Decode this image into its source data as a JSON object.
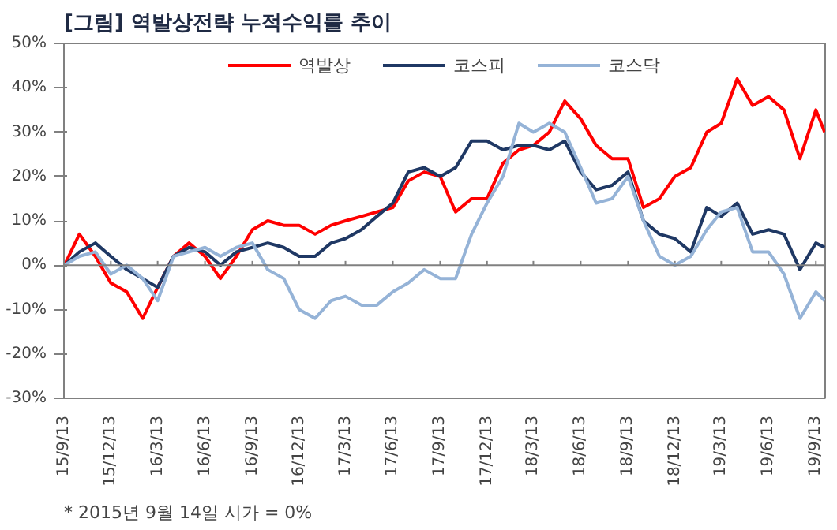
{
  "chart_data": {
    "type": "line",
    "title": "[그림] 역발상전략 누적수익률 추이",
    "annotations": [
      "* 2015년 9월 14일 시가 = 0%"
    ],
    "x": [
      "2015-09-14",
      "2015-10-13",
      "2015-11-13",
      "2015-12-13",
      "2016-01-13",
      "2016-02-13",
      "2016-03-13",
      "2016-04-13",
      "2016-05-13",
      "2016-06-13",
      "2016-07-13",
      "2016-08-13",
      "2016-09-13",
      "2016-10-13",
      "2016-11-13",
      "2016-12-13",
      "2017-01-13",
      "2017-02-13",
      "2017-03-13",
      "2017-04-13",
      "2017-05-13",
      "2017-06-13",
      "2017-07-13",
      "2017-08-13",
      "2017-09-13",
      "2017-10-13",
      "2017-11-13",
      "2017-12-13",
      "2018-01-13",
      "2018-02-13",
      "2018-03-13",
      "2018-04-13",
      "2018-05-13",
      "2018-06-13",
      "2018-07-13",
      "2018-08-13",
      "2018-09-13",
      "2018-10-13",
      "2018-11-13",
      "2018-12-13",
      "2019-01-13",
      "2019-02-13",
      "2019-03-13",
      "2019-04-13",
      "2019-05-13",
      "2019-06-13",
      "2019-07-13",
      "2019-08-13",
      "2019-09-13",
      "2019-09-30"
    ],
    "series": [
      {
        "name": "역발상",
        "color": "#ff0000",
        "values": [
          0,
          7,
          2,
          -4,
          -6,
          -12,
          -5,
          2,
          5,
          2,
          -3,
          2,
          8,
          10,
          9,
          9,
          7,
          9,
          10,
          11,
          12,
          13,
          19,
          21,
          20,
          12,
          15,
          15,
          23,
          26,
          27,
          30,
          37,
          33,
          27,
          24,
          24,
          13,
          15,
          20,
          22,
          30,
          32,
          42,
          36,
          38,
          35,
          24,
          35,
          30
        ]
      },
      {
        "name": "코스피",
        "color": "#1f3864",
        "values": [
          0,
          3,
          5,
          2,
          -1,
          -3,
          -5,
          2,
          4,
          3,
          0,
          3,
          4,
          5,
          4,
          2,
          2,
          5,
          6,
          8,
          11,
          14,
          21,
          22,
          20,
          22,
          28,
          28,
          26,
          27,
          27,
          26,
          28,
          21,
          17,
          18,
          21,
          10,
          7,
          6,
          3,
          13,
          11,
          14,
          7,
          8,
          7,
          -1,
          5,
          4
        ]
      },
      {
        "name": "코스닥",
        "color": "#95b3d7",
        "values": [
          0,
          2,
          3,
          -2,
          0,
          -3,
          -8,
          2,
          3,
          4,
          2,
          4,
          5,
          -1,
          -3,
          -10,
          -12,
          -8,
          -7,
          -9,
          -9,
          -6,
          -4,
          -1,
          -3,
          -3,
          7,
          14,
          20,
          32,
          30,
          32,
          30,
          22,
          14,
          15,
          20,
          10,
          2,
          0,
          2,
          8,
          12,
          13,
          3,
          3,
          -2,
          -12,
          -6,
          -8
        ]
      }
    ],
    "xlim": [
      "2015-09-13",
      "2019-10-01"
    ],
    "xticks": [
      {
        "value": "2015-09-13",
        "label": "15/9/13"
      },
      {
        "value": "2015-12-13",
        "label": "15/12/13"
      },
      {
        "value": "2016-03-13",
        "label": "16/3/13"
      },
      {
        "value": "2016-06-13",
        "label": "16/6/13"
      },
      {
        "value": "2016-09-13",
        "label": "16/9/13"
      },
      {
        "value": "2016-12-13",
        "label": "16/12/13"
      },
      {
        "value": "2017-03-13",
        "label": "17/3/13"
      },
      {
        "value": "2017-06-13",
        "label": "17/6/13"
      },
      {
        "value": "2017-09-13",
        "label": "17/9/13"
      },
      {
        "value": "2017-12-13",
        "label": "17/12/13"
      },
      {
        "value": "2018-03-13",
        "label": "18/3/13"
      },
      {
        "value": "2018-06-13",
        "label": "18/6/13"
      },
      {
        "value": "2018-09-13",
        "label": "18/9/13"
      },
      {
        "value": "2018-12-13",
        "label": "18/12/13"
      },
      {
        "value": "2019-03-13",
        "label": "19/3/13"
      },
      {
        "value": "2019-06-13",
        "label": "19/6/13"
      },
      {
        "value": "2019-09-13",
        "label": "19/9/13"
      }
    ],
    "ylim": [
      -30,
      50
    ],
    "yticks": [
      {
        "value": -30,
        "label": "-30%"
      },
      {
        "value": -20,
        "label": "-20%"
      },
      {
        "value": -10,
        "label": "-10%"
      },
      {
        "value": 0,
        "label": "0%"
      },
      {
        "value": 10,
        "label": "10%"
      },
      {
        "value": 20,
        "label": "20%"
      },
      {
        "value": 30,
        "label": "30%"
      },
      {
        "value": 40,
        "label": "40%"
      },
      {
        "value": 50,
        "label": "50%"
      }
    ],
    "ref_lines": [
      {
        "axis": "y",
        "value": 0,
        "color": "#808080"
      }
    ],
    "grid": false,
    "legend": "top",
    "marker": "none",
    "line_style": "solid"
  }
}
